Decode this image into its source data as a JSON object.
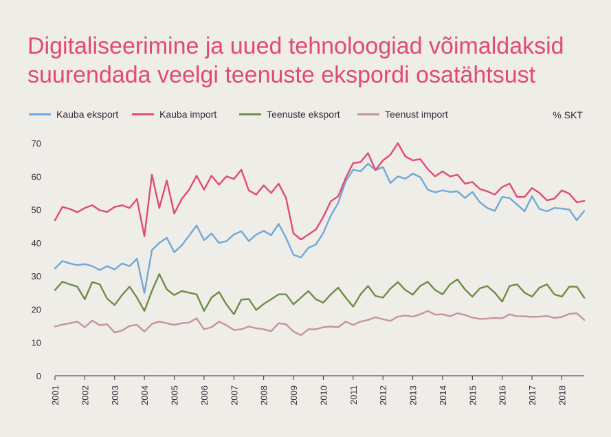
{
  "title_lines": [
    "Digitaliseerimine ja uued tehnoloogiad võimaldaksid",
    "suurendada veelgi teenuste ekspordi osatähtsust"
  ],
  "chart_data": {
    "type": "line",
    "title": "Digitaliseerimine ja uued tehnoloogiad võimaldaksid suurendada veelgi teenuste ekspordi osatähtsust",
    "unit_label": "% SKT",
    "ylim": [
      0,
      70
    ],
    "yticks": [
      0,
      10,
      20,
      30,
      40,
      50,
      60,
      70
    ],
    "xlim": [
      2001,
      2018.75
    ],
    "xticks": [
      "2001",
      "2002",
      "2003",
      "2004",
      "2005",
      "2006",
      "2007",
      "2008",
      "2009",
      "2010",
      "2011",
      "2012",
      "2013",
      "2014",
      "2015",
      "2016",
      "2017",
      "2018"
    ],
    "grid": false,
    "legend_position": "top",
    "x": [
      2001.0,
      2001.25,
      2001.5,
      2001.75,
      2002.0,
      2002.25,
      2002.5,
      2002.75,
      2003.0,
      2003.25,
      2003.5,
      2003.75,
      2004.0,
      2004.25,
      2004.5,
      2004.75,
      2005.0,
      2005.25,
      2005.5,
      2005.75,
      2006.0,
      2006.25,
      2006.5,
      2006.75,
      2007.0,
      2007.25,
      2007.5,
      2007.75,
      2008.0,
      2008.25,
      2008.5,
      2008.75,
      2009.0,
      2009.25,
      2009.5,
      2009.75,
      2010.0,
      2010.25,
      2010.5,
      2010.75,
      2011.0,
      2011.25,
      2011.5,
      2011.75,
      2012.0,
      2012.25,
      2012.5,
      2012.75,
      2013.0,
      2013.25,
      2013.5,
      2013.75,
      2014.0,
      2014.25,
      2014.5,
      2014.75,
      2015.0,
      2015.25,
      2015.5,
      2015.75,
      2016.0,
      2016.25,
      2016.5,
      2016.75,
      2017.0,
      2017.25,
      2017.5,
      2017.75,
      2018.0,
      2018.25,
      2018.5,
      2018.75
    ],
    "series": [
      {
        "name": "Kauba eksport",
        "color": "#6fa8d8",
        "values": [
          32.3,
          34.5,
          33.8,
          33.3,
          33.6,
          33.0,
          31.8,
          33.0,
          32.0,
          33.8,
          33.0,
          35.2,
          24.9,
          37.8,
          40.0,
          41.5,
          37.2,
          39.2,
          42.2,
          45.2,
          40.8,
          42.8,
          40.0,
          40.5,
          42.5,
          43.5,
          40.5,
          42.5,
          43.6,
          42.3,
          45.7,
          41.5,
          36.4,
          35.6,
          38.5,
          39.5,
          43.0,
          48.2,
          52.0,
          58.5,
          62.0,
          61.5,
          63.8,
          61.9,
          62.8,
          58.0,
          60.0,
          59.3,
          60.8,
          59.8,
          56.0,
          55.2,
          55.8,
          55.3,
          55.5,
          53.5,
          55.3,
          52.2,
          50.5,
          49.6,
          53.8,
          53.5,
          51.5,
          49.5,
          54.0,
          50.2,
          49.5,
          50.5,
          50.3,
          50.0,
          46.8,
          49.6
        ]
      },
      {
        "name": "Kauba import",
        "color": "#e04a73",
        "values": [
          46.8,
          50.8,
          50.2,
          49.2,
          50.5,
          51.3,
          49.8,
          49.3,
          50.8,
          51.3,
          50.5,
          53.2,
          42.0,
          60.5,
          50.5,
          58.8,
          48.8,
          53.2,
          56.0,
          60.2,
          56.0,
          60.2,
          57.5,
          60.0,
          59.2,
          62.0,
          55.8,
          54.5,
          57.3,
          55.0,
          57.8,
          53.5,
          42.8,
          41.0,
          42.5,
          44.0,
          47.8,
          52.5,
          54.0,
          59.5,
          64.0,
          64.3,
          67.0,
          61.9,
          64.8,
          66.5,
          70.0,
          66.0,
          64.8,
          65.2,
          62.2,
          60.0,
          61.5,
          60.0,
          60.5,
          57.8,
          58.3,
          56.2,
          55.5,
          54.5,
          56.8,
          57.8,
          53.8,
          53.8,
          56.5,
          55.0,
          52.8,
          53.3,
          55.8,
          54.8,
          52.2,
          52.6
        ]
      },
      {
        "name": "Teenuste eksport",
        "color": "#6e8c46",
        "values": [
          25.8,
          28.3,
          27.5,
          26.8,
          23.0,
          28.2,
          27.5,
          23.2,
          21.3,
          24.3,
          26.8,
          23.5,
          19.5,
          25.5,
          30.6,
          26.0,
          24.3,
          25.5,
          25.0,
          24.5,
          19.5,
          23.5,
          25.2,
          21.5,
          18.5,
          22.9,
          23.1,
          19.8,
          21.6,
          23.0,
          24.5,
          24.5,
          21.5,
          23.5,
          25.5,
          23.0,
          22.0,
          24.5,
          26.5,
          23.5,
          20.8,
          24.5,
          27.0,
          24.0,
          23.5,
          26.2,
          28.2,
          25.8,
          24.4,
          27.0,
          28.3,
          25.8,
          24.5,
          27.5,
          29.0,
          26.0,
          23.8,
          26.3,
          27.0,
          25.0,
          22.3,
          27.0,
          27.5,
          25.0,
          23.8,
          26.5,
          27.5,
          24.5,
          23.8,
          26.8,
          26.8,
          23.5
        ]
      },
      {
        "name": "Teenust import",
        "color": "#c4949e",
        "values": [
          14.8,
          15.4,
          15.8,
          16.3,
          14.6,
          16.6,
          15.2,
          15.5,
          13.0,
          13.6,
          15.0,
          15.3,
          13.3,
          15.6,
          16.3,
          15.8,
          15.3,
          15.8,
          16.0,
          17.3,
          14.0,
          14.6,
          16.3,
          15.2,
          13.8,
          14.0,
          14.8,
          14.3,
          14.0,
          13.4,
          15.8,
          15.5,
          13.3,
          12.2,
          14.0,
          14.0,
          14.6,
          14.8,
          14.6,
          16.3,
          15.3,
          16.3,
          16.8,
          17.6,
          17.0,
          16.5,
          17.8,
          18.1,
          17.8,
          18.5,
          19.5,
          18.4,
          18.5,
          17.9,
          18.8,
          18.3,
          17.5,
          17.1,
          17.2,
          17.4,
          17.3,
          18.5,
          17.9,
          17.9,
          17.7,
          17.8,
          18.0,
          17.4,
          17.7,
          18.6,
          18.8,
          16.8
        ]
      }
    ]
  }
}
